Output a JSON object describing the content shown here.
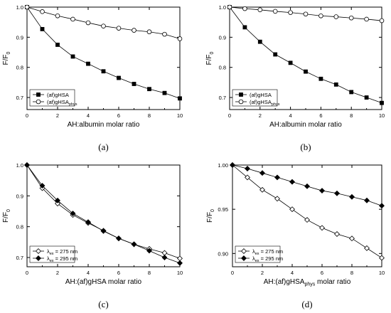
{
  "chart_data": [
    {
      "type": "line",
      "panel_label": "(a)",
      "xlabel": "AH:albumin molar ratio",
      "ylabel": "F/F",
      "ylabel_sub": "0",
      "xlim": [
        0,
        10
      ],
      "ylim": [
        0.66,
        1.0
      ],
      "x_ticks": [
        0,
        2,
        4,
        6,
        8,
        10
      ],
      "y_ticks": [
        0.7,
        0.8,
        0.9,
        1.0
      ],
      "y_tick_labels": [
        "0.7",
        "0.8",
        "0.9",
        "1.0"
      ],
      "legend_position": "bottom-left",
      "series": [
        {
          "name": "(af)gHSA",
          "name_sub": "",
          "marker": "filled-square",
          "x": [
            0,
            1,
            2,
            3,
            4,
            5,
            6,
            7,
            8,
            9,
            10
          ],
          "y": [
            1.0,
            0.927,
            0.875,
            0.836,
            0.812,
            0.787,
            0.765,
            0.745,
            0.728,
            0.715,
            0.697
          ]
        },
        {
          "name": "(af)gHSA",
          "name_sub": "phys",
          "marker": "open-circle",
          "x": [
            0,
            1,
            2,
            3,
            4,
            5,
            6,
            7,
            8,
            9,
            10
          ],
          "y": [
            1.0,
            0.985,
            0.971,
            0.96,
            0.948,
            0.937,
            0.93,
            0.923,
            0.918,
            0.91,
            0.895
          ]
        }
      ]
    },
    {
      "type": "line",
      "panel_label": "(b)",
      "xlabel": "AH:albumin molar ratio",
      "ylabel": "F/F",
      "ylabel_sub": "0",
      "xlim": [
        0,
        10
      ],
      "ylim": [
        0.66,
        1.0
      ],
      "x_ticks": [
        0,
        2,
        4,
        6,
        8,
        10
      ],
      "y_ticks": [
        0.7,
        0.8,
        0.9,
        1.0
      ],
      "y_tick_labels": [
        "0.7",
        "0.8",
        "0.9",
        "1.0"
      ],
      "legend_position": "bottom-left",
      "series": [
        {
          "name": "(af)gHSA",
          "name_sub": "",
          "marker": "filled-square",
          "x": [
            0,
            1,
            2,
            3,
            4,
            5,
            6,
            7,
            8,
            9,
            10
          ],
          "y": [
            1.0,
            0.933,
            0.885,
            0.843,
            0.815,
            0.786,
            0.762,
            0.743,
            0.718,
            0.7,
            0.682
          ]
        },
        {
          "name": "(af)gHSA",
          "name_sub": "phys",
          "marker": "open-circle",
          "x": [
            0,
            1,
            2,
            3,
            4,
            5,
            6,
            7,
            8,
            9,
            10
          ],
          "y": [
            1.0,
            0.995,
            0.991,
            0.986,
            0.982,
            0.977,
            0.971,
            0.968,
            0.964,
            0.96,
            0.955
          ]
        }
      ]
    },
    {
      "type": "line",
      "panel_label": "(c)",
      "xlabel": "AH:(af)gHSA molar ratio",
      "ylabel": "F/F",
      "ylabel_sub": "0",
      "xlim": [
        0,
        10
      ],
      "ylim": [
        0.67,
        1.0
      ],
      "x_ticks": [
        0,
        2,
        4,
        6,
        8,
        10
      ],
      "y_ticks": [
        0.7,
        0.8,
        0.9,
        1.0
      ],
      "y_tick_labels": [
        "0.7",
        "0.8",
        "0.9",
        "1.0"
      ],
      "legend_position": "bottom-left",
      "series": [
        {
          "name": "λ",
          "name_sub": "ex",
          "name_suffix": " = 275 nm",
          "marker": "open-diamond",
          "x": [
            0,
            1,
            2,
            3,
            4,
            5,
            6,
            7,
            8,
            9,
            10
          ],
          "y": [
            1.0,
            0.925,
            0.875,
            0.838,
            0.812,
            0.787,
            0.762,
            0.743,
            0.728,
            0.715,
            0.697
          ]
        },
        {
          "name": "λ",
          "name_sub": "ex",
          "name_suffix": " = 295 nm",
          "marker": "filled-diamond",
          "x": [
            0,
            1,
            2,
            3,
            4,
            5,
            6,
            7,
            8,
            9,
            10
          ],
          "y": [
            1.0,
            0.933,
            0.885,
            0.843,
            0.815,
            0.786,
            0.762,
            0.743,
            0.722,
            0.7,
            0.682
          ]
        }
      ]
    },
    {
      "type": "line",
      "panel_label": "(d)",
      "xlabel": "AH:(af)gHSA",
      "xlabel_sub": "phys",
      "xlabel_suffix": " molar ratio",
      "ylabel": "F/F",
      "ylabel_sub": "0",
      "xlim": [
        0,
        10
      ],
      "ylim": [
        0.885,
        1.0
      ],
      "x_ticks": [
        0,
        2,
        4,
        6,
        8,
        10
      ],
      "y_ticks": [
        0.9,
        0.95,
        1.0
      ],
      "y_tick_labels": [
        "0.90",
        "0.95",
        "1.00"
      ],
      "legend_position": "bottom-left",
      "series": [
        {
          "name": "λ",
          "name_sub": "ex",
          "name_suffix": " = 275 nm",
          "marker": "open-diamond",
          "x": [
            0,
            1,
            2,
            3,
            4,
            5,
            6,
            7,
            8,
            9,
            10
          ],
          "y": [
            1.0,
            0.986,
            0.972,
            0.962,
            0.95,
            0.938,
            0.929,
            0.922,
            0.917,
            0.906,
            0.895
          ]
        },
        {
          "name": "λ",
          "name_sub": "ex",
          "name_suffix": " = 295 nm",
          "marker": "filled-diamond",
          "x": [
            0,
            1,
            2,
            3,
            4,
            5,
            6,
            7,
            8,
            9,
            10
          ],
          "y": [
            1.0,
            0.996,
            0.991,
            0.986,
            0.981,
            0.976,
            0.971,
            0.968,
            0.964,
            0.96,
            0.954
          ]
        }
      ]
    }
  ]
}
